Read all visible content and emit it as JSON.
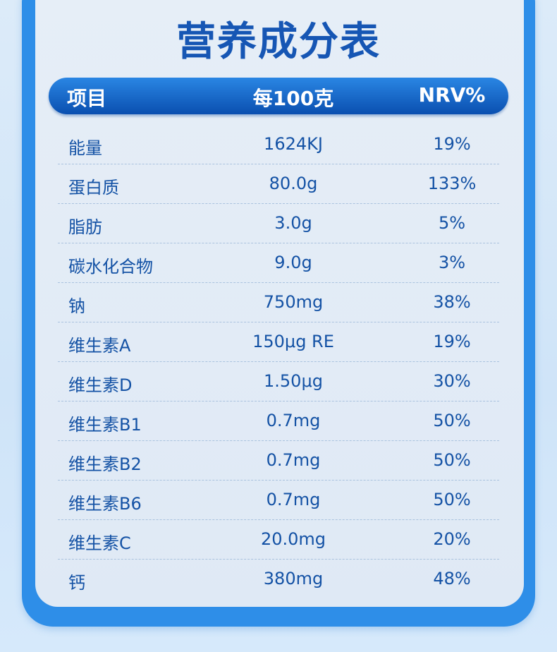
{
  "title": "营养成分表",
  "header": {
    "item": "项目",
    "per100g": "每100克",
    "nrv": "NRV%"
  },
  "rows": [
    {
      "item": "能量",
      "value": "1624KJ",
      "nrv": "19%"
    },
    {
      "item": "蛋白质",
      "value": "80.0g",
      "nrv": "133%"
    },
    {
      "item": "脂肪",
      "value": "3.0g",
      "nrv": "5%"
    },
    {
      "item": "碳水化合物",
      "value": "9.0g",
      "nrv": "3%"
    },
    {
      "item": "钠",
      "value": "750mg",
      "nrv": "38%"
    },
    {
      "item": "维生素A",
      "value": "150μg RE",
      "nrv": "19%"
    },
    {
      "item": "维生素D",
      "value": "1.50μg",
      "nrv": "30%"
    },
    {
      "item": "维生素B1",
      "value": "0.7mg",
      "nrv": "50%"
    },
    {
      "item": "维生素B2",
      "value": "0.7mg",
      "nrv": "50%"
    },
    {
      "item": "维生素B6",
      "value": "0.7mg",
      "nrv": "50%"
    },
    {
      "item": "维生素C",
      "value": "20.0mg",
      "nrv": "20%"
    },
    {
      "item": "钙",
      "value": "380mg",
      "nrv": "48%"
    }
  ],
  "colors": {
    "accent": "#1656b4",
    "frame": "#2e8ee8"
  }
}
